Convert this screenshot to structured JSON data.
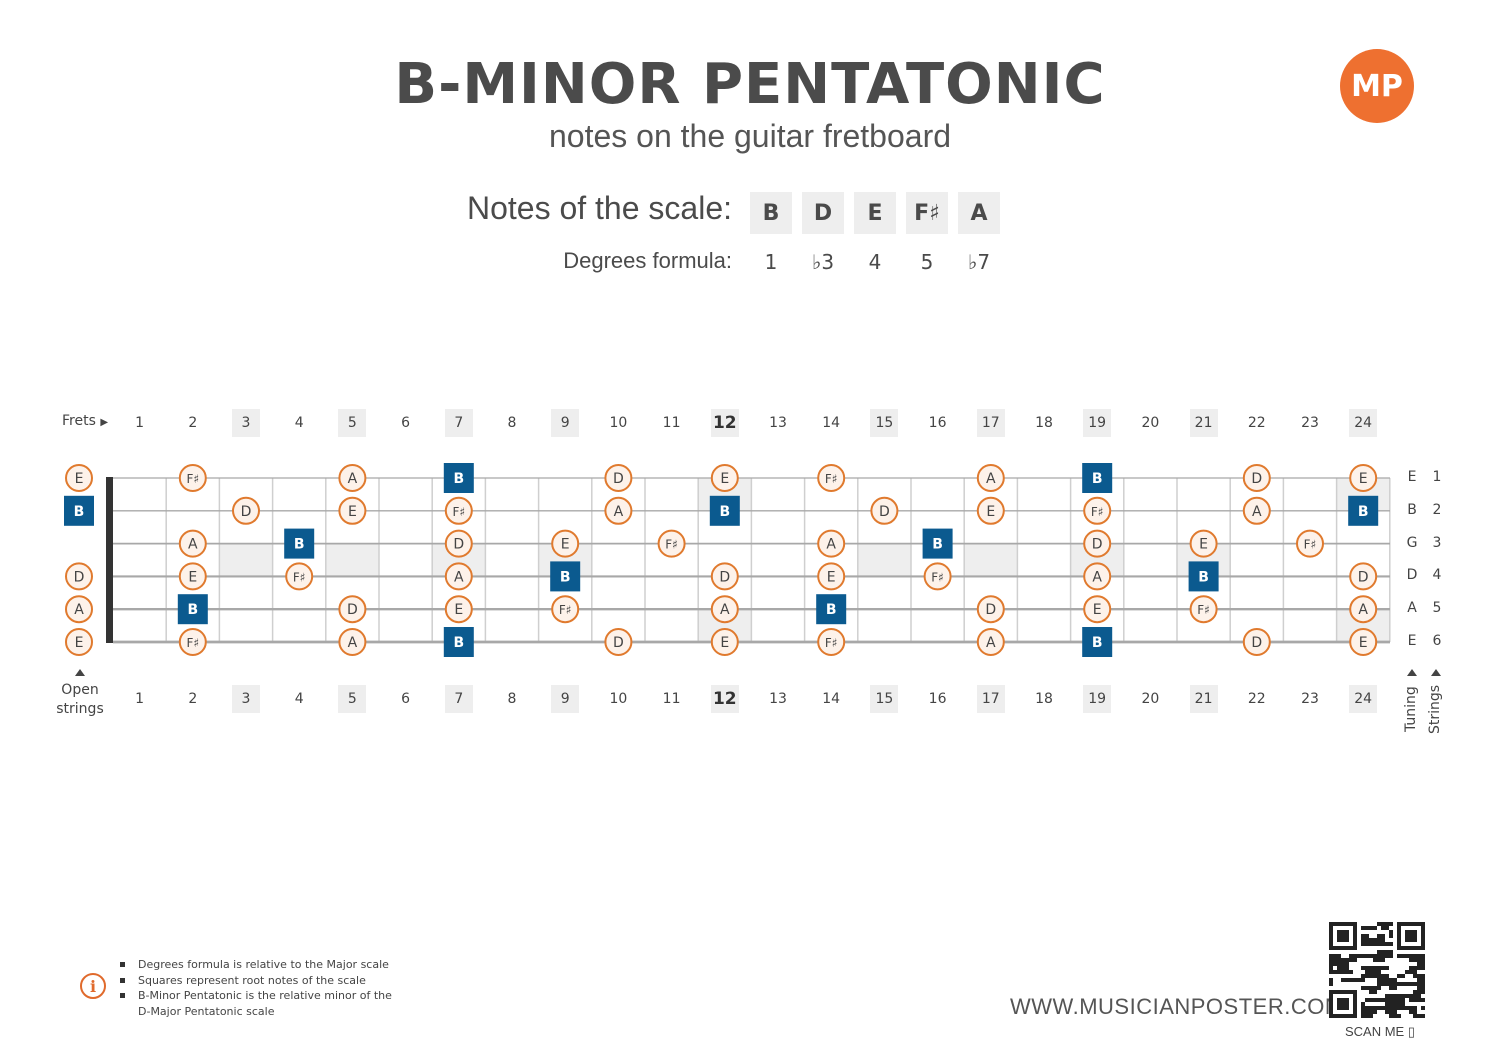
{
  "header": {
    "title": "B-MINOR PENTATONIC",
    "subtitle": "notes on the guitar fretboard",
    "logo_text": "MP"
  },
  "scale": {
    "notes_label": "Notes of the scale:",
    "notes": [
      "B",
      "D",
      "E",
      "F♯",
      "A"
    ],
    "degrees_label": "Degrees formula:",
    "degrees": [
      "1",
      "♭3",
      "4",
      "5",
      "♭7"
    ]
  },
  "fretboard": {
    "frets_label": "Frets",
    "open_label_line1": "Open",
    "open_label_line2": "strings",
    "tuning_label": "Tuning",
    "strings_label": "Strings",
    "fret_numbers": [
      "1",
      "2",
      "3",
      "4",
      "5",
      "6",
      "7",
      "8",
      "9",
      "10",
      "11",
      "12",
      "13",
      "14",
      "15",
      "16",
      "17",
      "18",
      "19",
      "20",
      "21",
      "22",
      "23",
      "24"
    ],
    "marker_frets": [
      3,
      5,
      7,
      9,
      12,
      15,
      17,
      19,
      21,
      24
    ],
    "double_marker_frets": [
      12,
      24
    ],
    "root_note": "B",
    "tuning": [
      "E",
      "B",
      "G",
      "D",
      "A",
      "E"
    ],
    "string_numbers": [
      "1",
      "2",
      "3",
      "4",
      "5",
      "6"
    ],
    "strings": [
      {
        "open": "E",
        "notes": [
          {
            "fret": 2,
            "note": "F♯"
          },
          {
            "fret": 5,
            "note": "A"
          },
          {
            "fret": 7,
            "note": "B"
          },
          {
            "fret": 10,
            "note": "D"
          },
          {
            "fret": 12,
            "note": "E"
          },
          {
            "fret": 14,
            "note": "F♯"
          },
          {
            "fret": 17,
            "note": "A"
          },
          {
            "fret": 19,
            "note": "B"
          },
          {
            "fret": 22,
            "note": "D"
          },
          {
            "fret": 24,
            "note": "E"
          }
        ]
      },
      {
        "open": "B",
        "notes": [
          {
            "fret": 3,
            "note": "D"
          },
          {
            "fret": 5,
            "note": "E"
          },
          {
            "fret": 7,
            "note": "F♯"
          },
          {
            "fret": 10,
            "note": "A"
          },
          {
            "fret": 12,
            "note": "B"
          },
          {
            "fret": 15,
            "note": "D"
          },
          {
            "fret": 17,
            "note": "E"
          },
          {
            "fret": 19,
            "note": "F♯"
          },
          {
            "fret": 22,
            "note": "A"
          },
          {
            "fret": 24,
            "note": "B"
          }
        ]
      },
      {
        "open": "",
        "notes": [
          {
            "fret": 2,
            "note": "A"
          },
          {
            "fret": 4,
            "note": "B"
          },
          {
            "fret": 7,
            "note": "D"
          },
          {
            "fret": 9,
            "note": "E"
          },
          {
            "fret": 11,
            "note": "F♯"
          },
          {
            "fret": 14,
            "note": "A"
          },
          {
            "fret": 16,
            "note": "B"
          },
          {
            "fret": 19,
            "note": "D"
          },
          {
            "fret": 21,
            "note": "E"
          },
          {
            "fret": 23,
            "note": "F♯"
          }
        ]
      },
      {
        "open": "D",
        "notes": [
          {
            "fret": 2,
            "note": "E"
          },
          {
            "fret": 4,
            "note": "F♯"
          },
          {
            "fret": 7,
            "note": "A"
          },
          {
            "fret": 9,
            "note": "B"
          },
          {
            "fret": 12,
            "note": "D"
          },
          {
            "fret": 14,
            "note": "E"
          },
          {
            "fret": 16,
            "note": "F♯"
          },
          {
            "fret": 19,
            "note": "A"
          },
          {
            "fret": 21,
            "note": "B"
          },
          {
            "fret": 24,
            "note": "D"
          }
        ]
      },
      {
        "open": "A",
        "notes": [
          {
            "fret": 2,
            "note": "B"
          },
          {
            "fret": 5,
            "note": "D"
          },
          {
            "fret": 7,
            "note": "E"
          },
          {
            "fret": 9,
            "note": "F♯"
          },
          {
            "fret": 12,
            "note": "A"
          },
          {
            "fret": 14,
            "note": "B"
          },
          {
            "fret": 17,
            "note": "D"
          },
          {
            "fret": 19,
            "note": "E"
          },
          {
            "fret": 21,
            "note": "F♯"
          },
          {
            "fret": 24,
            "note": "A"
          }
        ]
      },
      {
        "open": "E",
        "notes": [
          {
            "fret": 2,
            "note": "F♯"
          },
          {
            "fret": 5,
            "note": "A"
          },
          {
            "fret": 7,
            "note": "B"
          },
          {
            "fret": 10,
            "note": "D"
          },
          {
            "fret": 12,
            "note": "E"
          },
          {
            "fret": 14,
            "note": "F♯"
          },
          {
            "fret": 17,
            "note": "A"
          },
          {
            "fret": 19,
            "note": "B"
          },
          {
            "fret": 22,
            "note": "D"
          },
          {
            "fret": 24,
            "note": "E"
          }
        ]
      }
    ]
  },
  "colors": {
    "note_border": "#e07a2e",
    "note_fill": "#fdf2ea",
    "root_fill": "#0b5a8f",
    "marker_fill": "#eeeeee",
    "nut": "#333333",
    "logo": "#ee7030"
  },
  "footer": {
    "info": [
      "Degrees formula is relative to the Major scale",
      "Squares represent root notes of the scale",
      "B-Minor Pentatonic is the relative minor of the",
      "D-Major Pentatonic scale"
    ],
    "website": "WWW.MUSICIANPOSTER.COM",
    "scan": "SCAN ME"
  }
}
